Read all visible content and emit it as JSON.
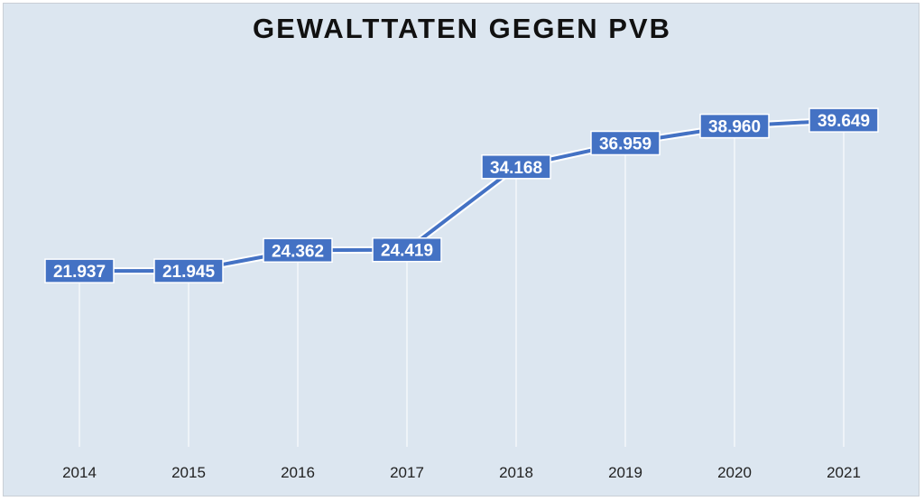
{
  "chart_data": {
    "type": "line",
    "title": "GEWALTTATEN GEGEN PVB",
    "categories": [
      "2014",
      "2015",
      "2016",
      "2017",
      "2018",
      "2019",
      "2020",
      "2021"
    ],
    "values": [
      21937,
      21945,
      24362,
      24419,
      34168,
      36959,
      38960,
      39649
    ],
    "data_labels": [
      "21.937",
      "21.945",
      "24.362",
      "24.419",
      "34.168",
      "36.959",
      "38.960",
      "39.649"
    ],
    "xlabel": "",
    "ylabel": "",
    "ylim": [
      0,
      45000
    ],
    "grid": false,
    "legend": "none",
    "colors": {
      "line": "#4472c4",
      "label_bg": "#4472c4",
      "label_text": "#ffffff",
      "background": "#dce6f0"
    }
  }
}
